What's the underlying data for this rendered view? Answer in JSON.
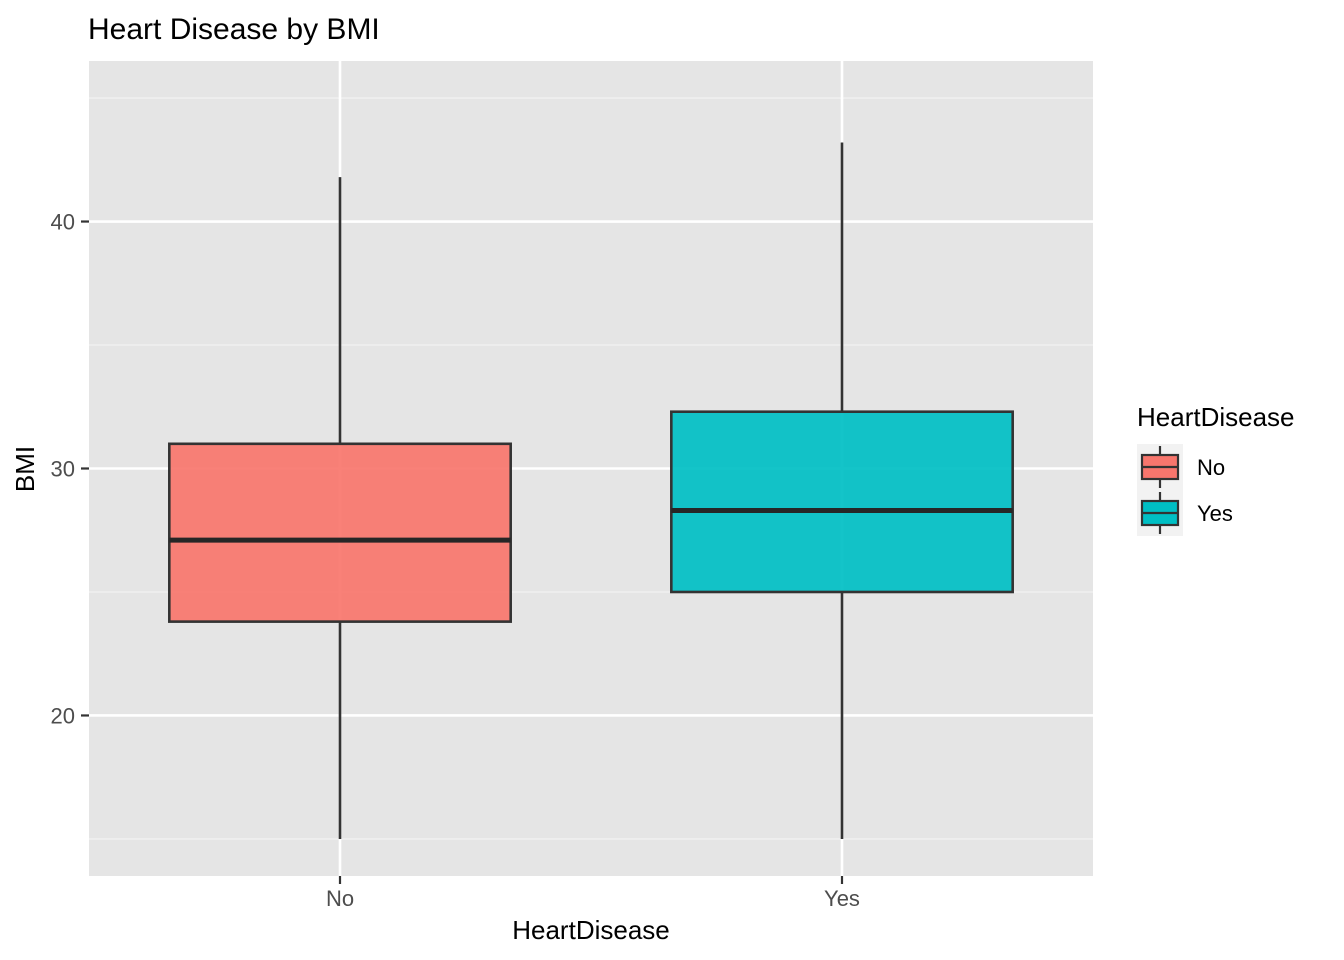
{
  "chart_data": {
    "type": "boxplot",
    "title": "Heart Disease by BMI",
    "xlabel": "HeartDisease",
    "ylabel": "BMI",
    "ylim": [
      13.5,
      46.5
    ],
    "y_ticks": [
      20,
      30,
      40
    ],
    "y_minor_ticks": [
      15,
      25,
      35,
      45
    ],
    "grid": true,
    "legend": {
      "title": "HeartDisease",
      "position": "right"
    },
    "categories": [
      "No",
      "Yes"
    ],
    "series": [
      {
        "name": "No",
        "color": "#F8766D",
        "whisker_low": 15.0,
        "q1": 23.8,
        "median": 27.1,
        "q3": 31.0,
        "whisker_high": 41.8
      },
      {
        "name": "Yes",
        "color": "#00BFC4",
        "whisker_low": 15.0,
        "q1": 25.0,
        "median": 28.3,
        "q3": 32.3,
        "whisker_high": 43.2
      }
    ]
  }
}
